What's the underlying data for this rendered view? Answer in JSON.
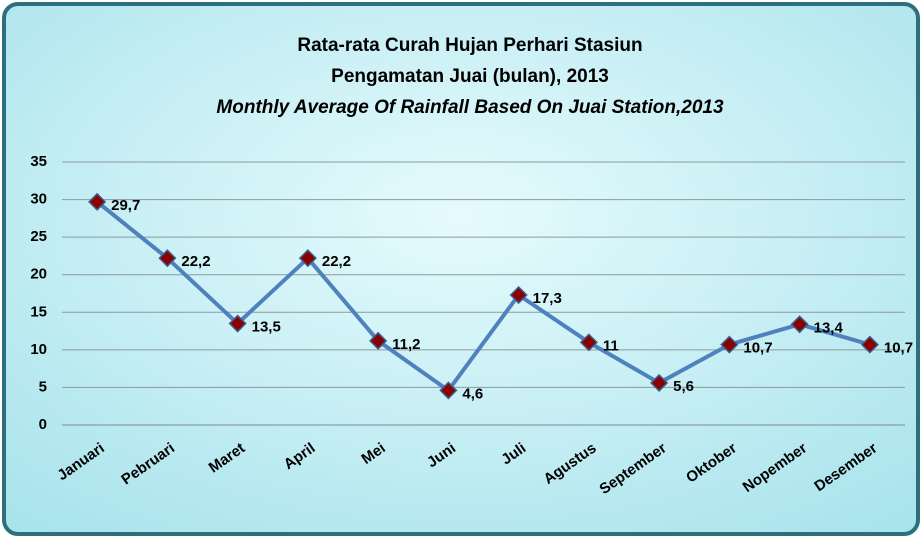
{
  "chart_data": {
    "type": "line",
    "title": "Rata-rata Curah Hujan Perhari Stasiun",
    "subtitle": "Pengamatan Juai (bulan), 2013",
    "subtitle_en": "Monthly Average Of Rainfall Based On Juai Station,2013",
    "categories": [
      "Januari",
      "Pebruari",
      "Maret",
      "April",
      "Mei",
      "Juni",
      "Juli",
      "Agustus",
      "September",
      "Oktober",
      "Nopember",
      "Desember"
    ],
    "values": [
      29.7,
      22.2,
      13.5,
      22.2,
      11.2,
      4.6,
      17.3,
      11,
      5.6,
      10.7,
      13.4,
      10.7
    ],
    "value_labels": [
      "29,7",
      "22,2",
      "13,5",
      "22,2",
      "11,2",
      "4,6",
      "17,3",
      "11",
      "5,6",
      "10,7",
      "13,4",
      "10,7"
    ],
    "color": "#4f81bd",
    "marker_color": "#8b0000",
    "ylim": [
      0,
      35
    ],
    "yticks": [
      0,
      5,
      10,
      15,
      20,
      25,
      30,
      35
    ],
    "grid": true
  }
}
